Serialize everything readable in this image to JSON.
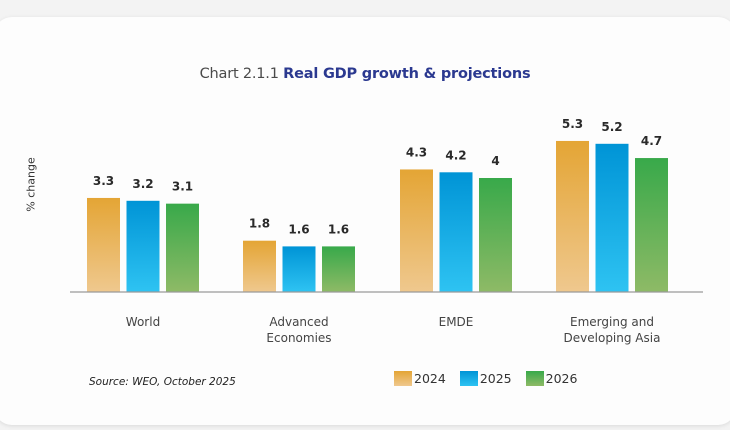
{
  "chart_data": {
    "type": "bar",
    "title_prefix": "Chart 2.1.1",
    "title": "Real GDP growth & projections",
    "xlabel": "",
    "ylabel": "% change",
    "ylim": [
      0,
      5.3
    ],
    "grid": false,
    "categories": [
      [
        "World"
      ],
      [
        "Advanced",
        "Economies"
      ],
      [
        "EMDE"
      ],
      [
        "Emerging and",
        "Developing Asia"
      ]
    ],
    "series": [
      {
        "name": "2024",
        "values": [
          3.3,
          1.8,
          4.3,
          5.3
        ],
        "labels": [
          "3.3",
          "1.8",
          "4.3",
          "5.3"
        ],
        "color_top": "#e4a535",
        "color_bottom": "#efc88e"
      },
      {
        "name": "2025",
        "values": [
          3.2,
          1.6,
          4.2,
          5.2
        ],
        "labels": [
          "3.2",
          "1.6",
          "4.2",
          "5.2"
        ],
        "color_top": "#0094d6",
        "color_bottom": "#2ec3f2"
      },
      {
        "name": "2026",
        "values": [
          3.1,
          1.6,
          4.0,
          4.7
        ],
        "labels": [
          "3.1",
          "1.6",
          "4",
          "4.7"
        ],
        "color_top": "#38a94a",
        "color_bottom": "#8eba66"
      }
    ],
    "legend_position": "bottom-right",
    "source": "Source: WEO, October 2025"
  }
}
